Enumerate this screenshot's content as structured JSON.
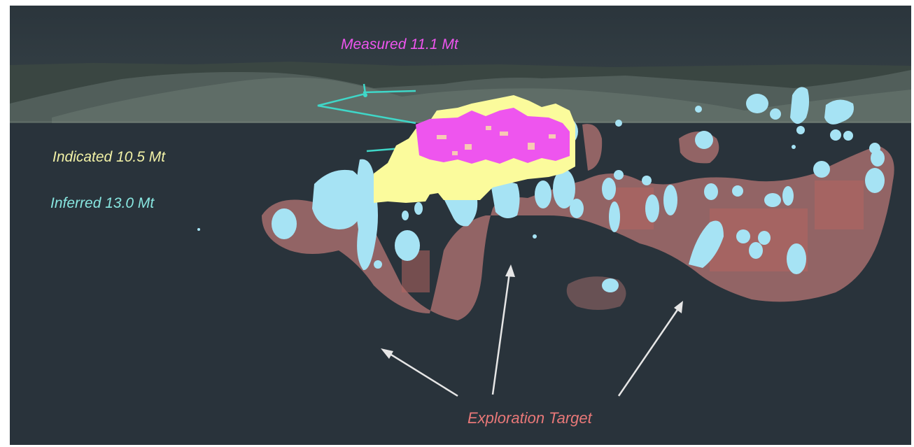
{
  "labels": {
    "measured": "Measured 11.1 Mt",
    "indicated": "Indicated 10.5 Mt",
    "inferred": "Inferred 13.0 Mt",
    "exploration": "Exploration Target"
  },
  "colors": {
    "background": "#29333b",
    "measured": "#ee55ee",
    "indicated": "#fbfb9c",
    "inferred": "#a6e3f4",
    "exploration": "#d3837f",
    "arrow": "#e6e6e6",
    "drill_trace": "#3fd7c8",
    "terrain": "#5d6a62"
  }
}
